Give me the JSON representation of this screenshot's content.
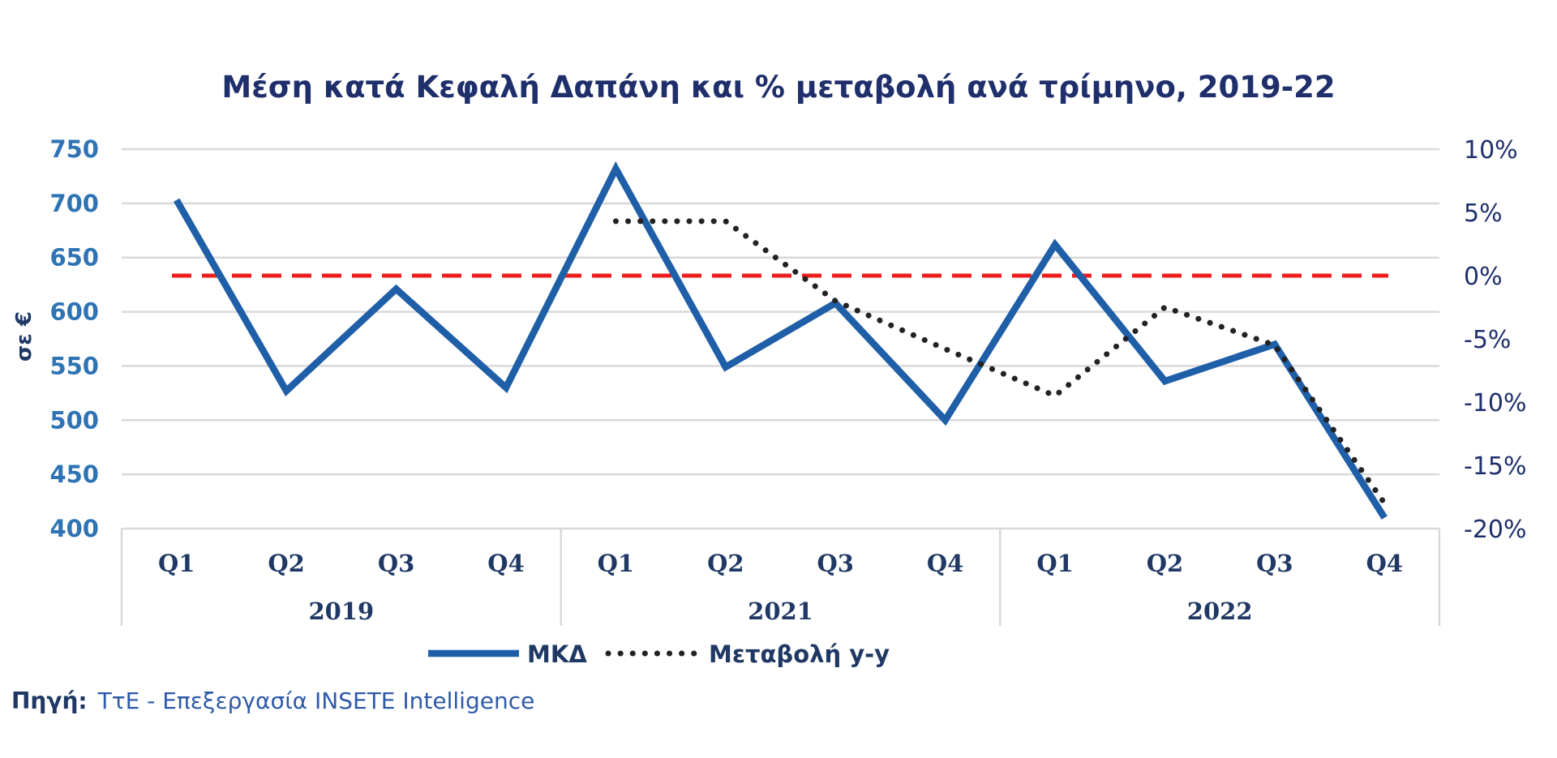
{
  "chart_data": {
    "type": "line",
    "title": "Μέση κατά Κεφαλή Δαπάνη και % μεταβολή ανά τρίμηνο, 2019-22",
    "ylabel": "σε €",
    "ylim": [
      400,
      750
    ],
    "y_ticks": [
      "750",
      "700",
      "650",
      "600",
      "550",
      "500",
      "450",
      "400"
    ],
    "y2lim": [
      -20,
      10
    ],
    "y2_ticks": [
      "10%",
      "5%",
      "0%",
      "-5%",
      "-10%",
      "-15%",
      "-20%"
    ],
    "categories": [
      "Q1",
      "Q2",
      "Q3",
      "Q4",
      "Q1",
      "Q2",
      "Q3",
      "Q4",
      "Q1",
      "Q2",
      "Q3",
      "Q4"
    ],
    "groups": [
      {
        "label": "2019",
        "span": 4
      },
      {
        "label": "2021",
        "span": 4
      },
      {
        "label": "2022",
        "span": 4
      }
    ],
    "series": [
      {
        "name": "ΜΚΔ",
        "axis": "left",
        "color": "#1f5fa8",
        "style": "solid",
        "values": [
          703,
          527,
          621,
          530,
          732,
          549,
          608,
          500,
          662,
          536,
          570,
          410
        ]
      },
      {
        "name": "Μεταβολή y-y",
        "axis": "right",
        "color": "#222222",
        "style": "dotted",
        "values": [
          null,
          null,
          null,
          null,
          4.3,
          4.3,
          -2.0,
          -5.8,
          -9.5,
          -2.5,
          -5.5,
          -18.0
        ]
      }
    ],
    "reference_line": {
      "axis": "right",
      "value": 0,
      "color": "#ee1c1c",
      "style": "dashed"
    },
    "grid": true,
    "legend": "bottom"
  },
  "source": {
    "lead": "Πηγή:",
    "text": "ΤτΕ - Επεξεργασία INSETE Intelligence"
  }
}
